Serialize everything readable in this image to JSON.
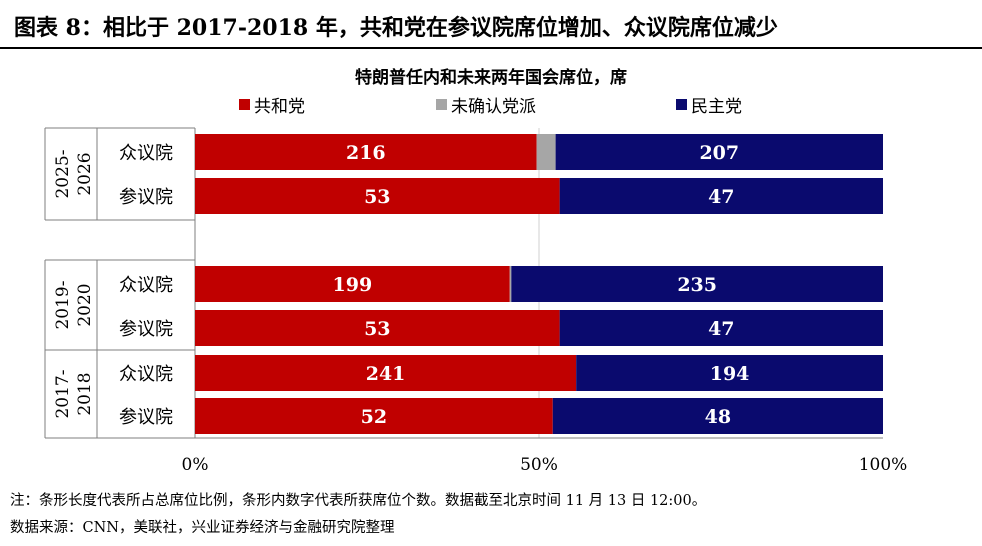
{
  "figure_title": "图表 8：相比于 2017-2018 年，共和党在参议院席位增加、众议院席位减少",
  "note": "注：条形长度代表所占总席位比例，条形内数字代表所获席位个数。数据截至北京时间 11 月 13 日 12:00。",
  "source": "数据来源：CNN，美联社，兴业证券经济与金融研究院整理",
  "colors": {
    "republican": "#c00000",
    "undetermined": "#a6a6a6",
    "democrat": "#0a0a6e"
  },
  "chart_data": {
    "type": "bar",
    "orientation": "horizontal",
    "stacked": true,
    "normalized": true,
    "title": "特朗普任内和未来两年国会席位，席",
    "xlim": [
      0,
      100
    ],
    "x_ticks": [
      "0%",
      "50%",
      "100%"
    ],
    "legend_position": "top",
    "groups": [
      {
        "label": "2025-\n2026",
        "label_lines": [
          "2025-",
          "2026"
        ],
        "categories": [
          "众议院",
          "参议院"
        ]
      },
      {
        "label": "2019-\n2020",
        "label_lines": [
          "2019-",
          "2020"
        ],
        "categories": [
          "众议院",
          "参议院"
        ]
      },
      {
        "label": "2017-\n2018",
        "label_lines": [
          "2017-",
          "2018"
        ],
        "categories": [
          "众议院",
          "参议院"
        ]
      }
    ],
    "series": [
      {
        "name": "共和党",
        "values": [
          216,
          53,
          199,
          53,
          241,
          52
        ]
      },
      {
        "name": "未确认党派",
        "values": [
          12,
          0,
          1,
          0,
          0,
          0
        ]
      },
      {
        "name": "民主党",
        "values": [
          207,
          47,
          235,
          47,
          194,
          48
        ]
      }
    ]
  }
}
